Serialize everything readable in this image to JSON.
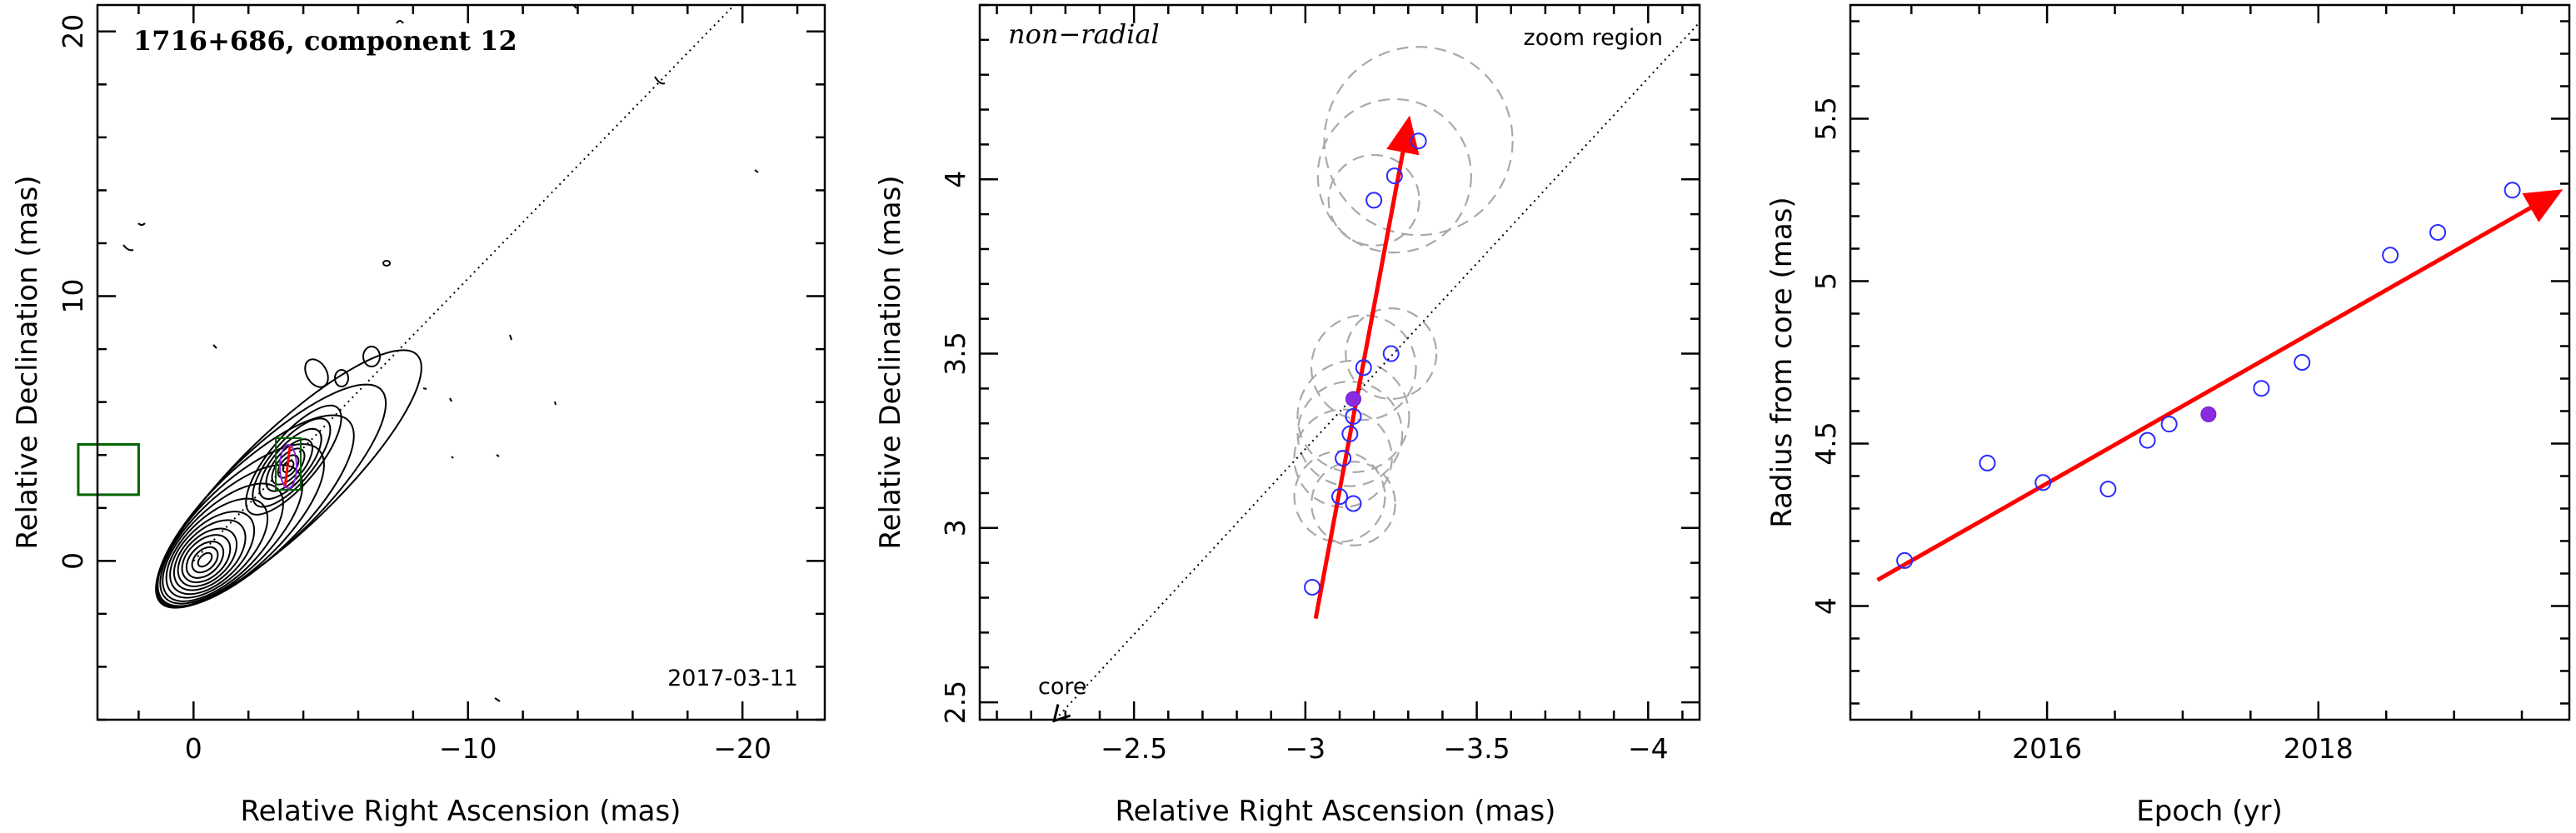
{
  "chart_data": [
    {
      "type": "scatter",
      "subtype": "contour-map",
      "title": "1716+686, component 12",
      "date_label": "2017-03-11",
      "xlabel": "Relative Right Ascension (mas)",
      "ylabel": "Relative Declination (mas)",
      "xlim": [
        3.5,
        -23
      ],
      "ylim": [
        -6,
        21
      ],
      "x_reversed": true,
      "xticks": [
        0,
        -10,
        -20
      ],
      "xtick_labels": [
        "0",
        "−10",
        "−20"
      ],
      "yticks": [
        0,
        10,
        20
      ],
      "ytick_labels": [
        "0",
        "10",
        "20"
      ],
      "zoom_box": {
        "x": [
          2.0,
          4.2
        ],
        "y": [
          2.5,
          4.4
        ]
      },
      "jet_direction_line": {
        "x": [
          0,
          -19.7
        ],
        "y": [
          0,
          21
        ]
      },
      "grid": false
    },
    {
      "type": "scatter",
      "title": "non−radial",
      "annotation": "zoom region",
      "core_label": "core",
      "xlabel": "Relative Right Ascension (mas)",
      "ylabel": "Relative Declination (mas)",
      "xlim": [
        -2.05,
        -4.15
      ],
      "ylim": [
        2.45,
        4.5
      ],
      "x_reversed": true,
      "xticks": [
        -2.5,
        -3,
        -3.5,
        -4
      ],
      "xtick_labels": [
        "−2.5",
        "−3",
        "−3.5",
        "−4"
      ],
      "yticks": [
        2.5,
        3,
        3.5,
        4
      ],
      "ytick_labels": [
        "2.5",
        "3",
        "3.5",
        "4"
      ],
      "points": [
        {
          "x": -3.02,
          "y": 2.83,
          "r": 0.0
        },
        {
          "x": -3.1,
          "y": 3.09,
          "r": 0.13
        },
        {
          "x": -3.14,
          "y": 3.07,
          "r": 0.12
        },
        {
          "x": -3.11,
          "y": 3.2,
          "r": 0.14
        },
        {
          "x": -3.13,
          "y": 3.27,
          "r": 0.15
        },
        {
          "x": -3.14,
          "y": 3.32,
          "r": 0.16
        },
        {
          "x": -3.17,
          "y": 3.46,
          "r": 0.15
        },
        {
          "x": -3.25,
          "y": 3.5,
          "r": 0.13
        },
        {
          "x": -3.2,
          "y": 3.94,
          "r": 0.13
        },
        {
          "x": -3.26,
          "y": 4.01,
          "r": 0.22
        },
        {
          "x": -3.33,
          "y": 4.11,
          "r": 0.27
        }
      ],
      "highlight_point": {
        "x": -3.14,
        "y": 3.37
      },
      "fit_vector": {
        "x": [
          -3.03,
          -3.3
        ],
        "y": [
          2.74,
          4.16
        ]
      },
      "jet_direction_line": {
        "x": [
          -2.27,
          -4.15
        ],
        "y": [
          2.45,
          4.45
        ]
      },
      "grid": false
    },
    {
      "type": "scatter",
      "xlabel": "Epoch (yr)",
      "ylabel": "Radius from core (mas)",
      "xlim": [
        2014.55,
        2019.85
      ],
      "ylim": [
        3.65,
        5.85
      ],
      "xticks": [
        2016,
        2018
      ],
      "xtick_labels": [
        "2016",
        "2018"
      ],
      "yticks": [
        4,
        4.5,
        5,
        5.5
      ],
      "ytick_labels": [
        "4",
        "4.5",
        "5",
        "5.5"
      ],
      "points": [
        {
          "x": 2014.95,
          "y": 4.14
        },
        {
          "x": 2015.56,
          "y": 4.44
        },
        {
          "x": 2015.97,
          "y": 4.38
        },
        {
          "x": 2016.45,
          "y": 4.36
        },
        {
          "x": 2016.74,
          "y": 4.51
        },
        {
          "x": 2016.9,
          "y": 4.56
        },
        {
          "x": 2017.58,
          "y": 4.67
        },
        {
          "x": 2017.88,
          "y": 4.75
        },
        {
          "x": 2018.53,
          "y": 5.08
        },
        {
          "x": 2018.88,
          "y": 5.15
        },
        {
          "x": 2019.43,
          "y": 5.28
        }
      ],
      "highlight_point": {
        "x": 2017.19,
        "y": 4.59
      },
      "fit_vector": {
        "x": [
          2014.75,
          2019.75
        ],
        "y": [
          4.08,
          5.27
        ]
      },
      "grid": false
    }
  ],
  "colors": {
    "arrow": "#ff0000",
    "open_point": "#2a2aff",
    "filled_point": "#8a2be2",
    "error_circle": "#a9a9a9",
    "zoom_box": "#006400"
  }
}
